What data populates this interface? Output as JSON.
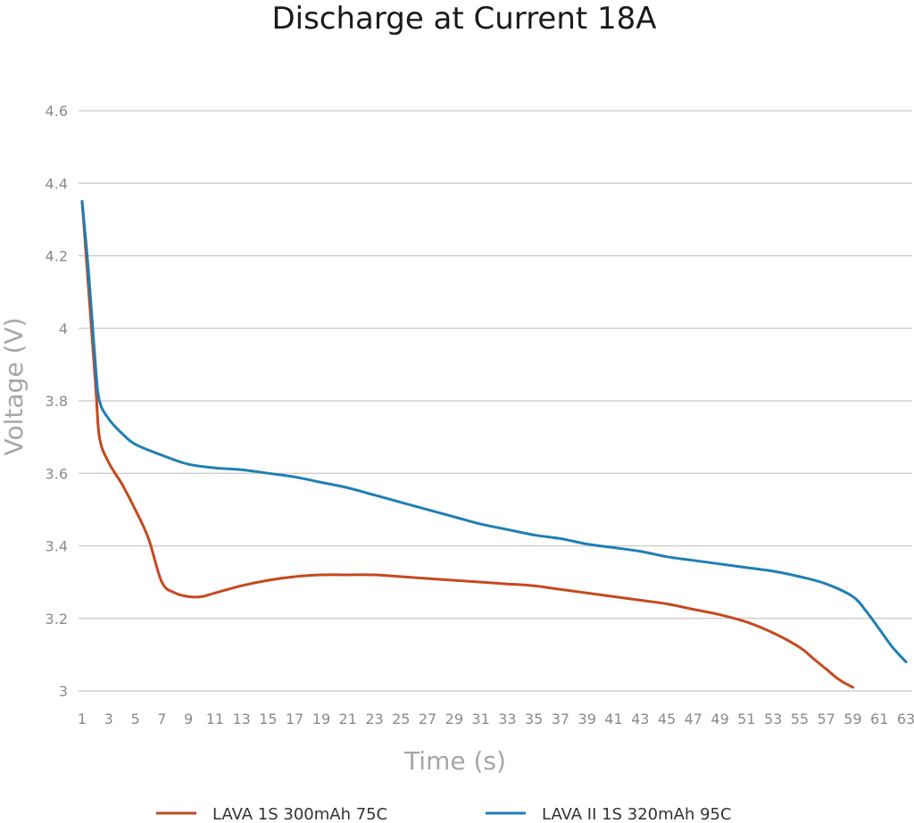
{
  "chart_data": {
    "type": "line",
    "title": "Discharge at Current 18A",
    "xlabel": "Time (s)",
    "ylabel": "Voltage (V)",
    "ylim": [
      3,
      4.6
    ],
    "xlim": [
      1,
      63
    ],
    "y_ticks": [
      "3",
      "3.2",
      "3.4",
      "3.6",
      "3.8",
      "4",
      "4.2",
      "4.4",
      "4.6"
    ],
    "x_ticks": [
      "1",
      "3",
      "5",
      "7",
      "9",
      "11",
      "13",
      "15",
      "17",
      "19",
      "21",
      "23",
      "25",
      "27",
      "29",
      "31",
      "33",
      "35",
      "37",
      "39",
      "41",
      "43",
      "45",
      "47",
      "49",
      "51",
      "53",
      "55",
      "57",
      "59",
      "61",
      "63"
    ],
    "grid": "horizontal",
    "legend_position": "bottom",
    "series": [
      {
        "name": "LAVA 1S 300mAh 75C",
        "color": "#C5491E",
        "x": [
          1,
          2,
          2.3,
          3,
          4,
          5,
          6,
          7,
          8,
          9,
          10,
          11,
          13,
          15,
          17,
          19,
          21,
          23,
          25,
          27,
          29,
          31,
          33,
          35,
          37,
          39,
          41,
          43,
          45,
          47,
          49,
          51,
          53,
          55,
          56,
          57,
          58,
          59
        ],
        "values": [
          4.35,
          3.85,
          3.7,
          3.63,
          3.57,
          3.5,
          3.42,
          3.3,
          3.27,
          3.26,
          3.26,
          3.27,
          3.29,
          3.305,
          3.315,
          3.32,
          3.32,
          3.32,
          3.315,
          3.31,
          3.305,
          3.3,
          3.295,
          3.29,
          3.28,
          3.27,
          3.26,
          3.25,
          3.24,
          3.225,
          3.21,
          3.19,
          3.16,
          3.12,
          3.09,
          3.06,
          3.03,
          3.01
        ]
      },
      {
        "name": "LAVA II 1S 320mAh 95C",
        "color": "#1F7FB5",
        "x": [
          1,
          1.5,
          2,
          2.3,
          3,
          4,
          5,
          7,
          9,
          11,
          13,
          15,
          17,
          19,
          21,
          23,
          25,
          27,
          29,
          31,
          33,
          35,
          37,
          39,
          41,
          43,
          45,
          47,
          49,
          51,
          53,
          55,
          57,
          59,
          60,
          61,
          62,
          63
        ],
        "values": [
          4.35,
          4.15,
          3.9,
          3.8,
          3.75,
          3.71,
          3.68,
          3.65,
          3.625,
          3.615,
          3.61,
          3.6,
          3.59,
          3.575,
          3.56,
          3.54,
          3.52,
          3.5,
          3.48,
          3.46,
          3.445,
          3.43,
          3.42,
          3.405,
          3.395,
          3.385,
          3.37,
          3.36,
          3.35,
          3.34,
          3.33,
          3.315,
          3.295,
          3.26,
          3.22,
          3.17,
          3.12,
          3.08
        ]
      }
    ]
  }
}
